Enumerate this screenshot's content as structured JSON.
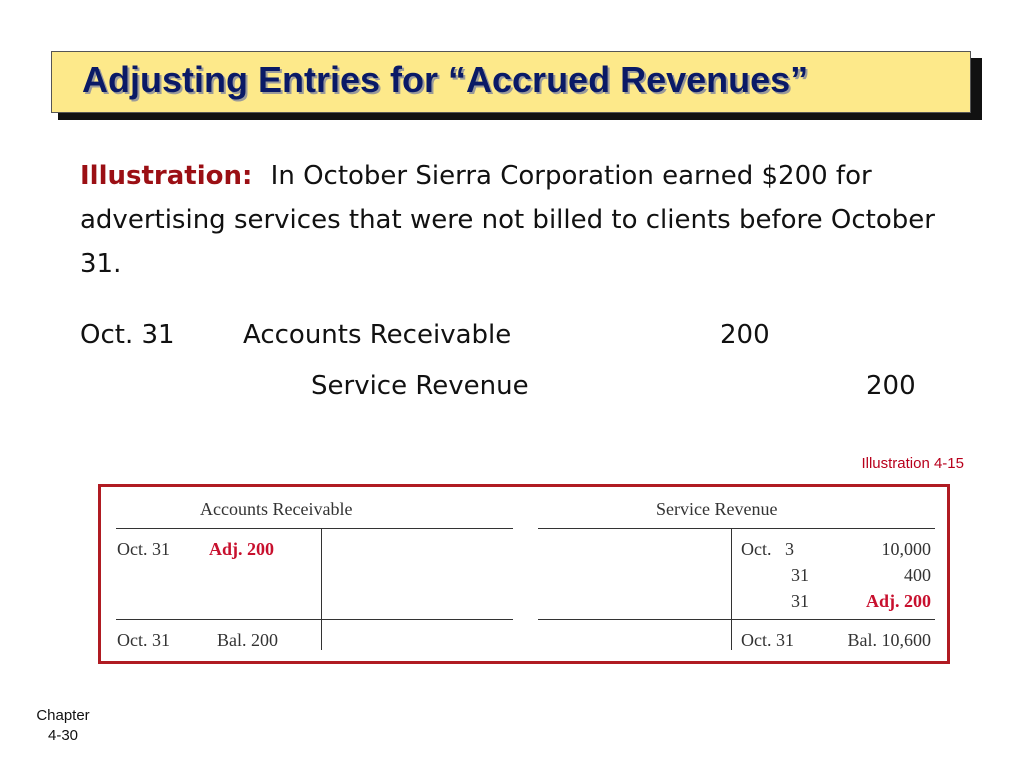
{
  "title": "Adjusting Entries for “Accrued Revenues”",
  "illustration": {
    "label": "Illustration:",
    "text": "In October Sierra Corporation earned $200 for advertising services that were not billed to clients before October 31."
  },
  "journal": {
    "date": "Oct. 31",
    "debit_account": "Accounts Receivable",
    "debit_amount": "200",
    "credit_account": "Service Revenue",
    "credit_amount": "200"
  },
  "figure_label": "Illustration 4-15",
  "t_accounts": {
    "accounts_receivable": {
      "name": "Accounts Receivable",
      "entry_date": "Oct. 31",
      "entry_value": "Adj. 200",
      "balance_date": "Oct. 31",
      "balance_value": "Bal. 200"
    },
    "service_revenue": {
      "name": "Service Revenue",
      "rows": [
        {
          "date": "Oct.   3",
          "value": "10,000"
        },
        {
          "date": "31",
          "value": "400"
        },
        {
          "date": "31",
          "value": "Adj. 200"
        }
      ],
      "balance_date": "Oct. 31",
      "balance_value": "Bal. 10,600"
    }
  },
  "footer": {
    "chapter_label": "Chapter",
    "page": "4-30"
  },
  "colors": {
    "title_bg": "#fde98a",
    "title_text": "#0a1a66",
    "accent_red": "#c8102e",
    "frame": "#b01b22"
  }
}
